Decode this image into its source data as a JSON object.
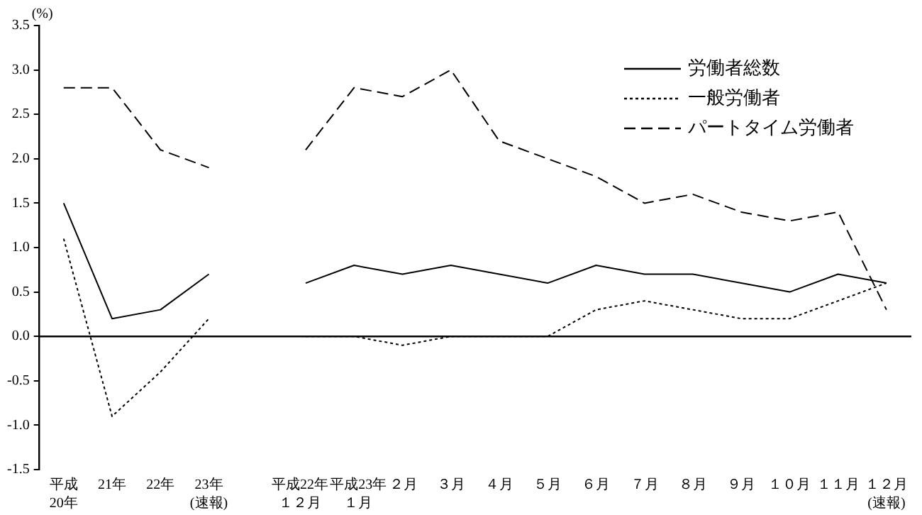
{
  "chart_data": {
    "type": "line",
    "ylabel": "(%)",
    "categories": [
      "平成\n20年",
      "21年",
      "22年",
      "23年\n(速報)",
      null,
      "平成22年１２月",
      "平成23年１月",
      "２月",
      "３月",
      "４月",
      "５月",
      "６月",
      "７月",
      "８月",
      "９月",
      "１０月",
      "１１月",
      "１２月\n(速報)"
    ],
    "series": [
      {
        "name": "労働者総数",
        "color": "#000000",
        "line_style": "solid",
        "values": [
          1.5,
          0.2,
          0.3,
          0.7,
          null,
          0.6,
          0.8,
          0.7,
          0.8,
          0.7,
          0.6,
          0.8,
          0.7,
          0.7,
          0.6,
          0.5,
          0.7,
          0.6
        ]
      },
      {
        "name": "一般労働者",
        "color": "#000000",
        "line_style": "dotted",
        "values": [
          1.1,
          -0.9,
          -0.4,
          0.2,
          null,
          0.0,
          0.0,
          -0.1,
          0.0,
          0.0,
          0.0,
          0.3,
          0.4,
          0.3,
          0.2,
          0.2,
          0.4,
          0.6
        ]
      },
      {
        "name": "パートタイム労働者",
        "color": "#000000",
        "line_style": "dashed",
        "values": [
          2.8,
          2.8,
          2.1,
          1.9,
          null,
          2.1,
          2.8,
          2.7,
          3.0,
          2.2,
          2.0,
          1.8,
          1.5,
          1.6,
          1.4,
          1.3,
          1.4,
          0.3
        ]
      }
    ],
    "ylim": [
      -1.5,
      3.5
    ],
    "yticks": [
      {
        "value": -1.5,
        "label": "-1.5"
      },
      {
        "value": -1,
        "label": "-1.0"
      },
      {
        "value": -0.5,
        "label": "-0.5"
      },
      {
        "value": 0,
        "label": "0.0"
      },
      {
        "value": 0.5,
        "label": "0.5"
      },
      {
        "value": 1,
        "label": "1.0"
      },
      {
        "value": 1.5,
        "label": "1.5"
      },
      {
        "value": 2,
        "label": "2.0"
      },
      {
        "value": 2.5,
        "label": "2.5"
      },
      {
        "value": 3,
        "label": "3.0"
      },
      {
        "value": 3.5,
        "label": "3.5"
      }
    ],
    "legend": "top right",
    "marker": "none"
  }
}
